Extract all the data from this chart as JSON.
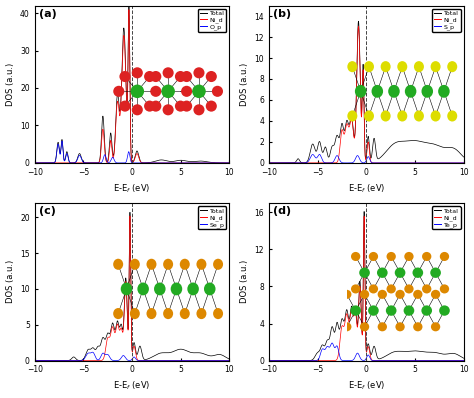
{
  "panels": [
    {
      "label": "(a)",
      "ylim": [
        0,
        42
      ],
      "yticks": [
        0,
        10,
        20,
        30,
        40
      ],
      "legend": [
        "Total",
        "Ni_d",
        "O_p"
      ],
      "colors": [
        "black",
        "red",
        "blue"
      ],
      "inset_colors": {
        "bg": "#dcdcdc",
        "atom1": "#dd2222",
        "atom2": "#22aa22"
      },
      "inset_type": "NiO_top"
    },
    {
      "label": "(b)",
      "ylim": [
        0,
        15
      ],
      "yticks": [
        0,
        2,
        4,
        6,
        8,
        10,
        12,
        14
      ],
      "legend": [
        "Total",
        "Ni_d",
        "S_p"
      ],
      "colors": [
        "black",
        "red",
        "blue"
      ],
      "inset_colors": {
        "bg": "#dcdcdc",
        "atom1": "#dddd00",
        "atom2": "#22aa22"
      },
      "inset_type": "NiX_side"
    },
    {
      "label": "(c)",
      "ylim": [
        0,
        22
      ],
      "yticks": [
        0,
        5,
        10,
        15,
        20
      ],
      "legend": [
        "Total",
        "Ni_d",
        "Se_p"
      ],
      "colors": [
        "black",
        "red",
        "blue"
      ],
      "inset_colors": {
        "bg": "#dcdcdc",
        "atom1": "#dd8800",
        "atom2": "#22aa22"
      },
      "inset_type": "NiX_side"
    },
    {
      "label": "(d)",
      "ylim": [
        0,
        17
      ],
      "yticks": [
        0,
        4,
        8,
        12,
        16
      ],
      "legend": [
        "Total",
        "Ni_d",
        "Te_p"
      ],
      "colors": [
        "black",
        "red",
        "blue"
      ],
      "inset_colors": {
        "bg": "#dcdcdc",
        "atom1": "#dd8800",
        "atom2": "#22aa22"
      },
      "inset_type": "NiX_side_tall"
    }
  ],
  "xlim": [
    -10,
    10
  ],
  "xticks": [
    -10,
    -5,
    0,
    5,
    10
  ],
  "xlabel": "E-E$_f$ (eV)",
  "ylabel": "DOS (a.u.)"
}
